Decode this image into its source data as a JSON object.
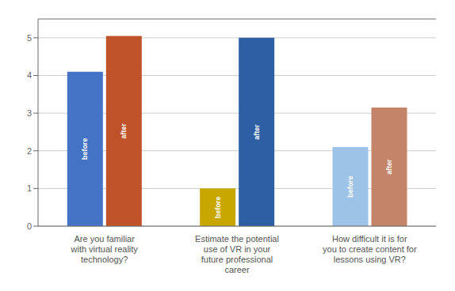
{
  "chart_data": {
    "type": "bar",
    "categories": [
      "Are you familiar\nwith virtual reality\ntechnology?",
      "Estimate the potential\nuse of VR in your\nfuture professional\ncareer",
      "How difficult it is for\nyou to create content for\nlessons using VR?"
    ],
    "series": [
      {
        "name": "before",
        "values": [
          4.1,
          1.0,
          2.1
        ],
        "colors": [
          "#4472C4",
          "#C8A800",
          "#9DC3E6"
        ]
      },
      {
        "name": "after",
        "values": [
          5.05,
          5.0,
          3.15
        ],
        "colors": [
          "#C0522A",
          "#2E5FA3",
          "#C4846A"
        ]
      }
    ],
    "ylim": [
      0,
      5.5
    ],
    "yticks": [
      0,
      1,
      2,
      3,
      4,
      5
    ],
    "grid": true
  }
}
